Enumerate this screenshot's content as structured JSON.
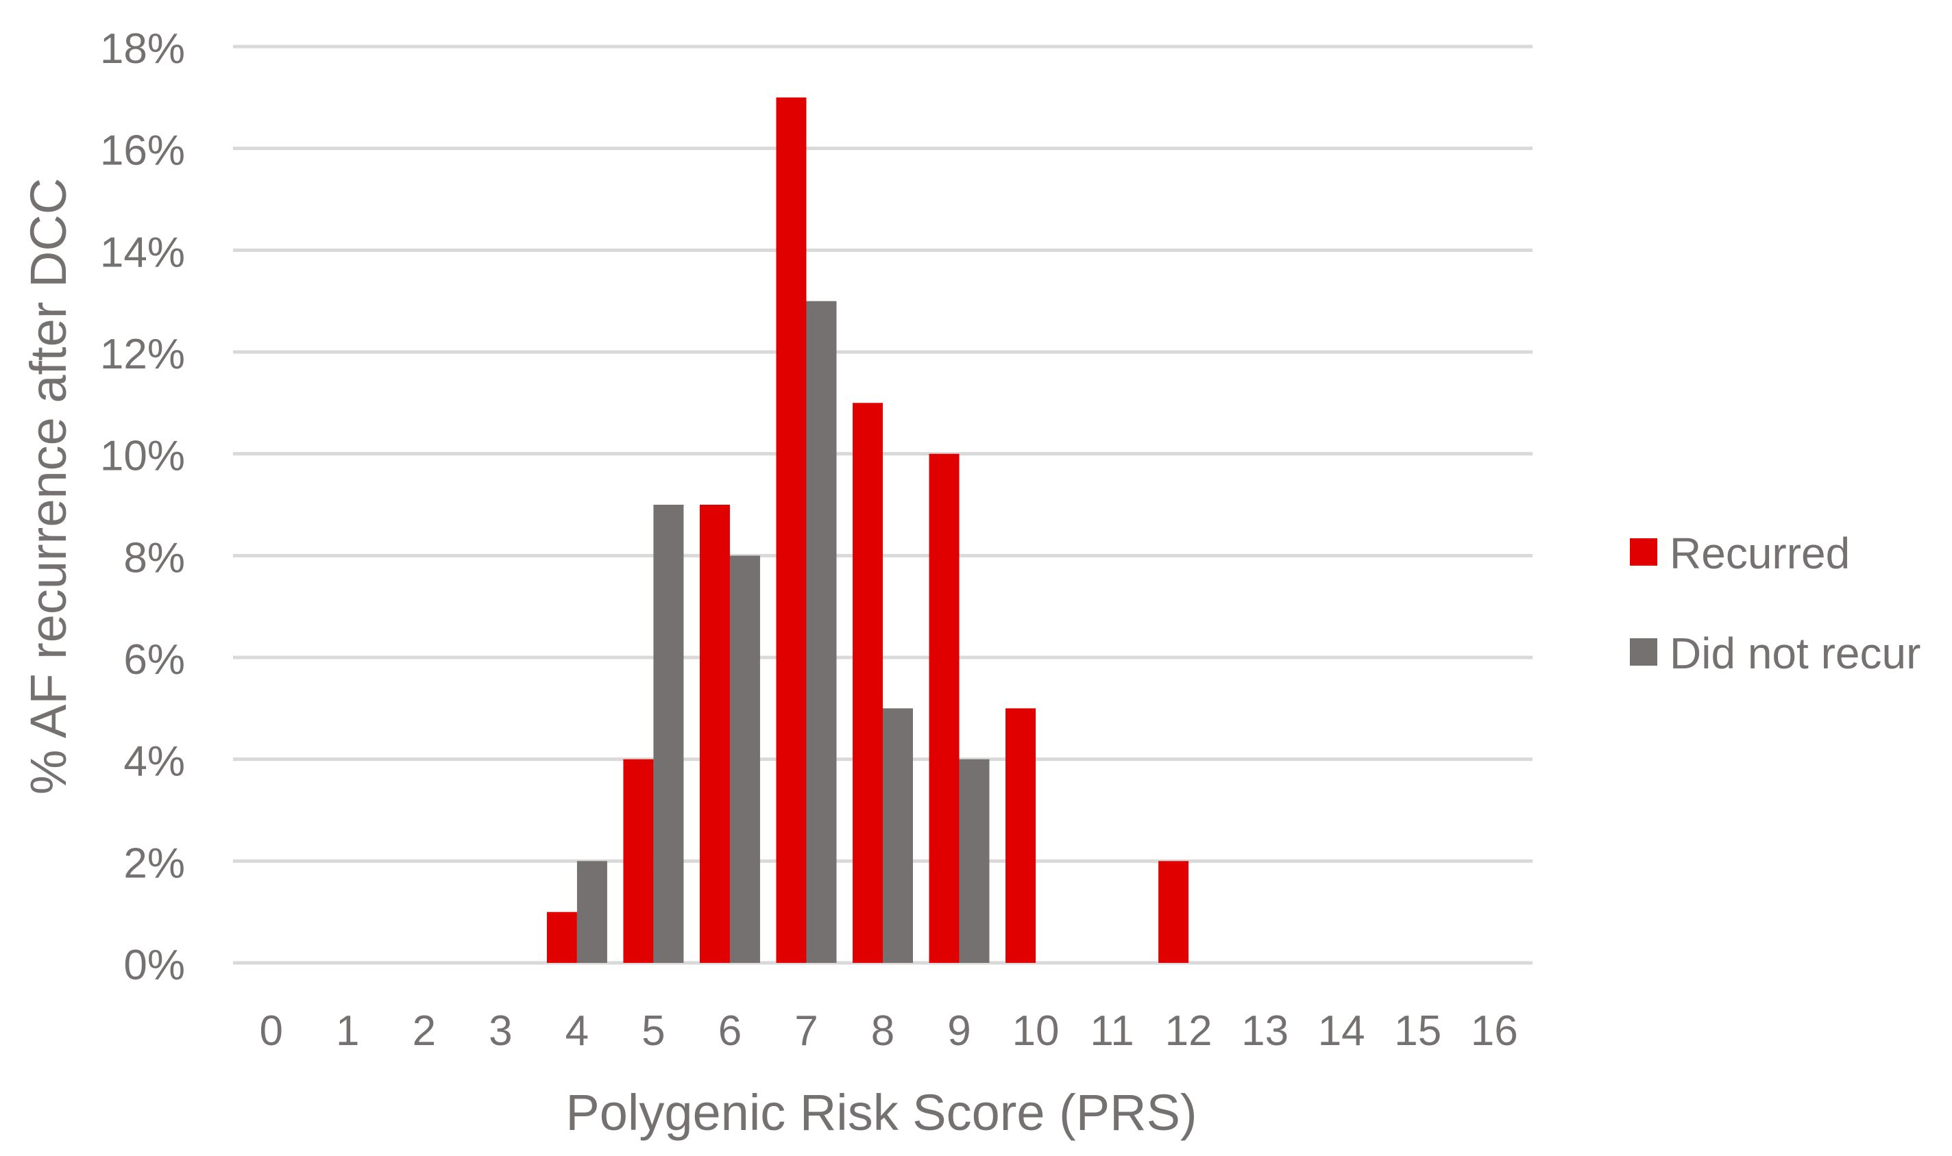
{
  "chart_data": {
    "type": "bar",
    "title": "",
    "xlabel": "Polygenic Risk Score (PRS)",
    "ylabel": "% AF recurrence after DCC",
    "categories": [
      "0",
      "1",
      "2",
      "3",
      "4",
      "5",
      "6",
      "7",
      "8",
      "9",
      "10",
      "11",
      "12",
      "13",
      "14",
      "15",
      "16"
    ],
    "series": [
      {
        "name": "Recurred",
        "color": "#e00000",
        "values": [
          0,
          0,
          0,
          0,
          1,
          4,
          9,
          17,
          11,
          10,
          5,
          0,
          2,
          0,
          0,
          0,
          0
        ]
      },
      {
        "name": "Did not recur",
        "color": "#767171",
        "values": [
          0,
          0,
          0,
          0,
          2,
          9,
          8,
          13,
          5,
          4,
          0,
          0,
          0,
          0,
          0,
          0,
          0
        ]
      }
    ],
    "ylim": [
      0,
      18
    ],
    "yticks": [
      0,
      2,
      4,
      6,
      8,
      10,
      12,
      14,
      16,
      18
    ],
    "ytick_labels": [
      "0%",
      "2%",
      "4%",
      "6%",
      "8%",
      "10%",
      "12%",
      "14%",
      "16%",
      "18%"
    ],
    "grid": true,
    "gridline_color": "#d9d9d9",
    "legend_position": "right",
    "text_color": "#767171"
  }
}
